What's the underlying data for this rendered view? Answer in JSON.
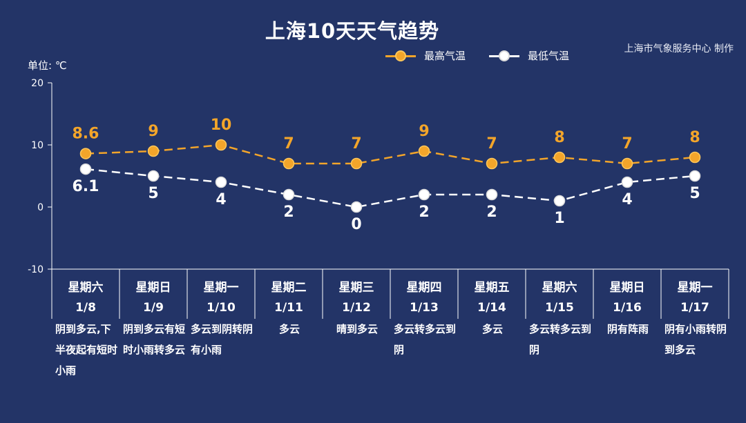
{
  "header": {
    "title": "上海10天天气趋势",
    "credit": "上海市气象服务中心 制作",
    "unit": "单位: ℃"
  },
  "colors": {
    "background": "#233467",
    "high": "#f3a52a",
    "low": "#ffffff"
  },
  "chart_data": {
    "type": "line",
    "title": "上海10天天气趋势",
    "ylabel": "单位: ℃",
    "ylim": [
      -10,
      20
    ],
    "yticks": [
      20,
      10,
      0,
      -10
    ],
    "grid": false,
    "legend_position": "top-right",
    "categories": [
      {
        "weekday": "星期六",
        "date": "1/8"
      },
      {
        "weekday": "星期日",
        "date": "1/9"
      },
      {
        "weekday": "星期一",
        "date": "1/10"
      },
      {
        "weekday": "星期二",
        "date": "1/11"
      },
      {
        "weekday": "星期三",
        "date": "1/12"
      },
      {
        "weekday": "星期四",
        "date": "1/13"
      },
      {
        "weekday": "星期五",
        "date": "1/14"
      },
      {
        "weekday": "星期六",
        "date": "1/15"
      },
      {
        "weekday": "星期日",
        "date": "1/16"
      },
      {
        "weekday": "星期一",
        "date": "1/17"
      }
    ],
    "series": [
      {
        "name": "最高气温",
        "values": [
          8.6,
          9,
          10,
          7,
          7,
          9,
          7,
          8,
          7,
          8
        ]
      },
      {
        "name": "最低气温",
        "values": [
          6.1,
          5,
          4,
          2,
          0,
          2,
          2,
          1,
          4,
          5
        ]
      }
    ],
    "descriptions": [
      "阴到多云,下半夜起有短时小雨",
      "阴到多云有短时小雨转多云",
      "多云到阴转阴有小雨",
      "多云",
      "晴到多云",
      "多云转多云到阴",
      "多云",
      "多云转多云到阴",
      "阴有阵雨",
      "阴有小雨转阴到多云"
    ]
  }
}
